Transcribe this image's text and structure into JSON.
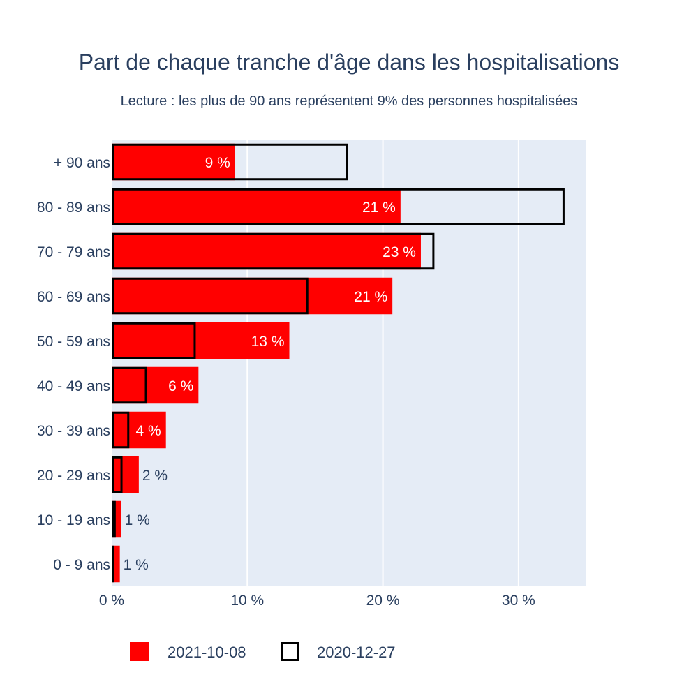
{
  "chart_data": {
    "type": "bar",
    "orientation": "horizontal",
    "title": "Part de chaque tranche d'âge dans les hospitalisations",
    "subtitle": "Lecture : les plus de 90 ans représentent 9% des personnes hospitalisées",
    "categories": [
      "+ 90 ans",
      "80 - 89 ans",
      "70 - 79 ans",
      "60 - 69 ans",
      "50 - 59 ans",
      "40 - 49 ans",
      "30 - 39 ans",
      "20 - 29 ans",
      "10 - 19 ans",
      "0 - 9 ans"
    ],
    "series": [
      {
        "name": "2021-10-08",
        "style": "filled",
        "color": "#ff0000",
        "values": [
          9.1,
          21.3,
          22.8,
          20.7,
          13.1,
          6.4,
          4.0,
          2.0,
          0.7,
          0.6
        ],
        "labels": [
          "9 %",
          "21 %",
          "23 %",
          "21 %",
          "13 %",
          "6 %",
          "4 %",
          "2 %",
          "1 %",
          "1 %"
        ],
        "label_position": [
          "inside",
          "inside",
          "inside",
          "inside",
          "inside",
          "inside",
          "inside",
          "outside",
          "outside",
          "outside"
        ]
      },
      {
        "name": "2020-12-27",
        "style": "outline",
        "color": "#000000",
        "values": [
          17.4,
          33.4,
          23.8,
          14.5,
          6.2,
          2.6,
          1.3,
          0.8,
          0.3,
          0.2
        ]
      }
    ],
    "xlim": [
      0,
      35
    ],
    "xticks": [
      0,
      10,
      20,
      30
    ],
    "xtick_labels": [
      "0 %",
      "10 %",
      "20 %",
      "30 %"
    ],
    "grid": true,
    "legend_position": "bottom",
    "plot_background": "#e5ecf6",
    "text_color": "#2a3f5f"
  }
}
